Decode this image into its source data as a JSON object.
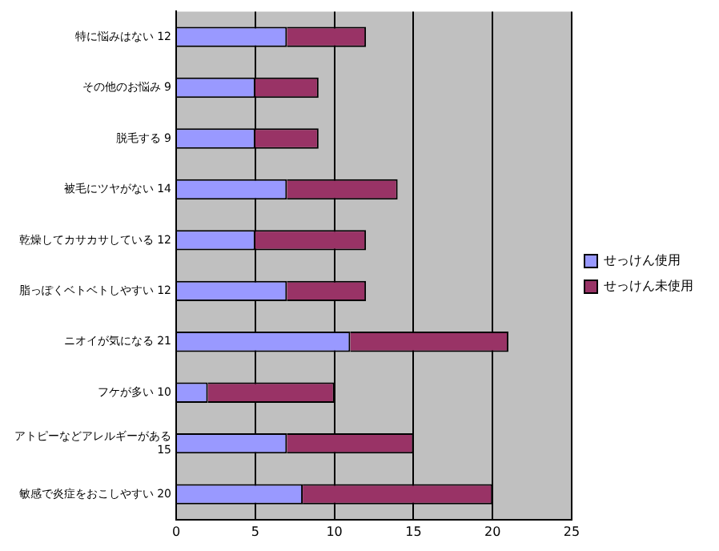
{
  "chart_data": {
    "type": "bar",
    "orientation": "horizontal",
    "stacked": true,
    "categories": [
      "特に悩みはない 12",
      "その他のお悩み 9",
      "脱毛する 9",
      "被毛にツヤがない 14",
      "乾燥してカサカサしている 12",
      "脂っぽくベトベトしやすい 12",
      "ニオイが気になる 21",
      "フケが多い 10",
      "アトピーなどアレルギーがある 15",
      "敏感で炎症をおこしやすい 20"
    ],
    "series": [
      {
        "name": "せっけん使用",
        "color": "#9999ff",
        "values": [
          7,
          5,
          5,
          7,
          5,
          7,
          11,
          2,
          7,
          8
        ]
      },
      {
        "name": "せっけん未使用",
        "color": "#993366",
        "values": [
          5,
          4,
          4,
          7,
          7,
          5,
          10,
          8,
          8,
          12
        ]
      }
    ],
    "xlim": [
      0,
      25
    ],
    "xticks": [
      0,
      5,
      10,
      15,
      20,
      25
    ],
    "grid": "x",
    "legend": "right"
  }
}
